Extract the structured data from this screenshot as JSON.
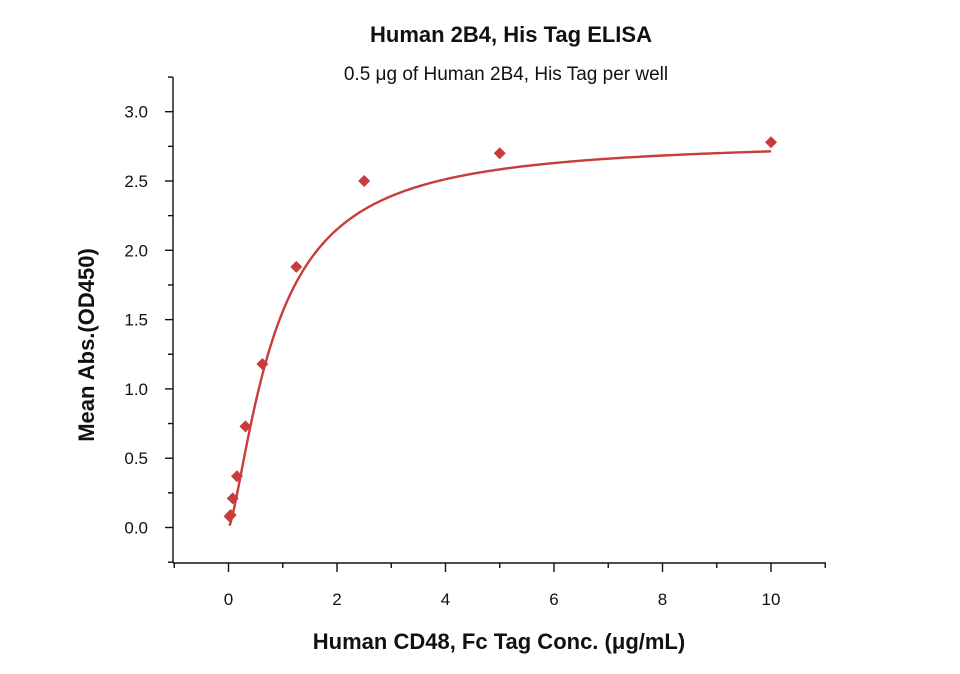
{
  "chart_data": {
    "type": "scatter",
    "title": "Human 2B4, His Tag ELISA",
    "subtitle": "0.5 μg of Human 2B4, His Tag per well",
    "xlabel": "Human CD48, Fc Tag Conc. (μg/mL)",
    "ylabel": "Mean Abs.(OD450)",
    "xlim": [
      -1,
      11
    ],
    "ylim": [
      -0.25,
      3.25
    ],
    "x_ticks": [
      0,
      2,
      4,
      6,
      8,
      10
    ],
    "x_tick_labels": [
      "0",
      "2",
      "4",
      "6",
      "8",
      "10"
    ],
    "y_ticks": [
      0.0,
      0.5,
      1.0,
      1.5,
      2.0,
      2.5,
      3.0
    ],
    "y_tick_labels": [
      "0.0",
      "0.5",
      "1.0",
      "1.5",
      "2.0",
      "2.5",
      "3.0"
    ],
    "grid": false,
    "series": [
      {
        "x": [
          0.0195,
          0.039,
          0.078,
          0.156,
          0.3125,
          0.625,
          1.25,
          2.5,
          5,
          10
        ],
        "y": [
          0.08,
          0.09,
          0.21,
          0.37,
          0.73,
          1.18,
          1.88,
          2.5,
          2.7,
          2.78
        ],
        "marker": "diamond",
        "color": "#c83c3c",
        "fit": "four-parameter logistic",
        "fit_params": {
          "bottom": 0.0,
          "top": 2.8,
          "ec50": 0.85,
          "hill": 1.4
        }
      }
    ]
  }
}
